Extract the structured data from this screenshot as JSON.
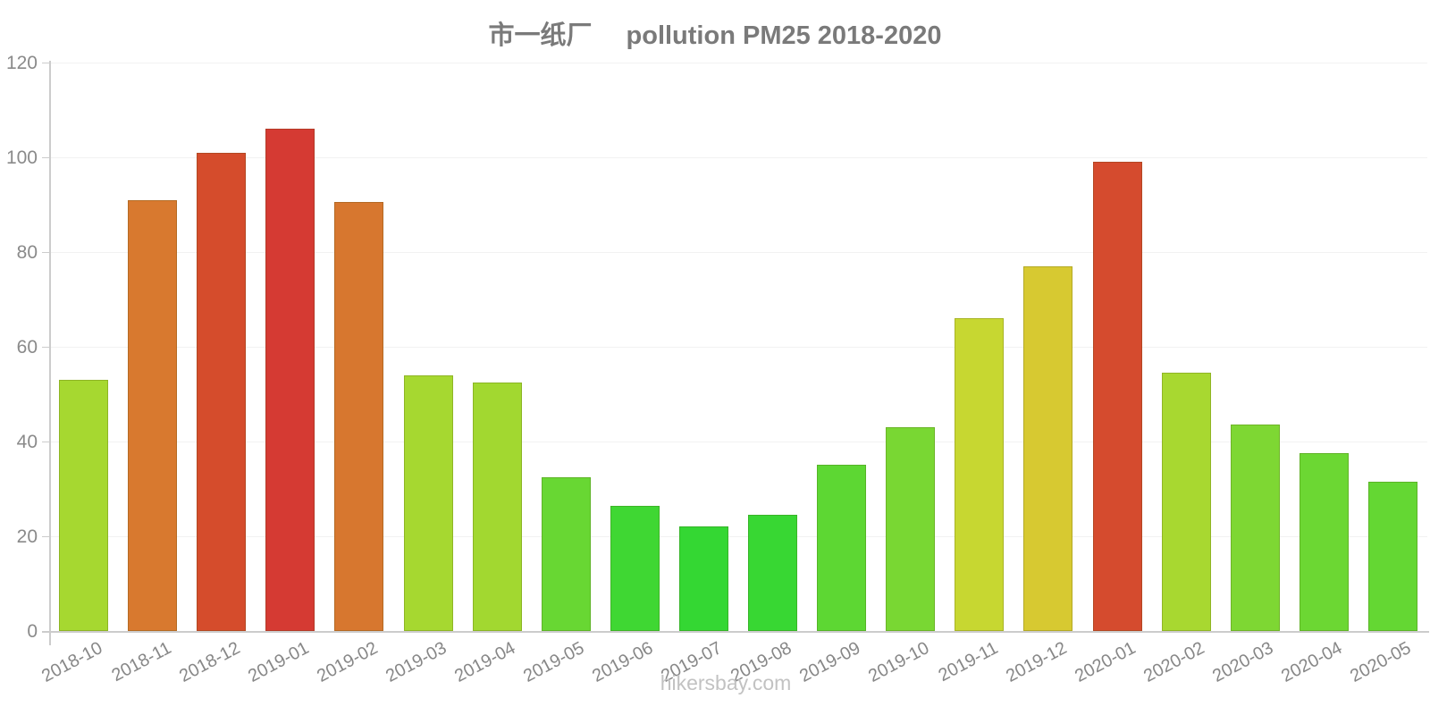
{
  "title": {
    "factory": "市一纸厂",
    "main": "pollution PM25 2018-2020"
  },
  "footer": {
    "text": "hikersbay.com"
  },
  "colors": {
    "background": "#ffffff",
    "title_text": "#7a7a7a",
    "axis_line": "#cccccc",
    "gridline": "#f2f2f2",
    "tick_label": "#8a8a8a",
    "footer_text": "#c2c2c2"
  },
  "chart_data": {
    "type": "bar",
    "title": "市一纸厂 pollution PM25 2018-2020",
    "xlabel": "",
    "ylabel": "",
    "ylim": [
      0,
      120
    ],
    "yticks": [
      0,
      20,
      40,
      60,
      80,
      100,
      120
    ],
    "grid": true,
    "legend": "none",
    "categories": [
      "2018-10",
      "2018-11",
      "2018-12",
      "2019-01",
      "2019-02",
      "2019-03",
      "2019-04",
      "2019-05",
      "2019-06",
      "2019-07",
      "2019-08",
      "2019-09",
      "2019-10",
      "2019-11",
      "2019-12",
      "2020-01",
      "2020-02",
      "2020-03",
      "2020-04",
      "2020-05"
    ],
    "values": [
      53,
      91,
      101,
      106,
      90.5,
      54,
      52.5,
      32.5,
      26.5,
      22,
      24.5,
      35,
      43,
      66,
      77,
      99,
      54.5,
      43.5,
      37.5,
      31.5
    ],
    "bar_colors": [
      "#a6d830",
      "#d8792f",
      "#d54c2c",
      "#d53a33",
      "#d7772f",
      "#a6d830",
      "#a2d830",
      "#68d733",
      "#3fd733",
      "#34d733",
      "#38d733",
      "#5dd733",
      "#79d733",
      "#c7d731",
      "#d7c931",
      "#d54b2e",
      "#a8d830",
      "#7ed733",
      "#6cd733",
      "#64d733"
    ]
  }
}
